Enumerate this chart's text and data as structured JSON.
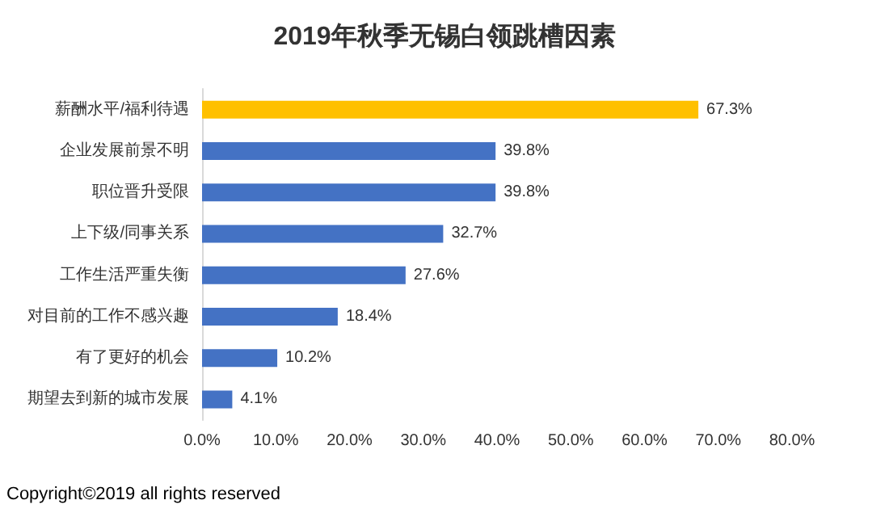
{
  "chart_data": {
    "type": "bar",
    "orientation": "horizontal",
    "title": "2019年秋季无锡白领跳槽因素",
    "categories": [
      "薪酬水平/福利待遇",
      "企业发展前景不明",
      "职位晋升受限",
      "上下级/同事关系",
      "工作生活严重失衡",
      "对目前的工作不感兴趣",
      "有了更好的机会",
      "期望去到新的城市发展"
    ],
    "values": [
      67.3,
      39.8,
      39.8,
      32.7,
      27.6,
      18.4,
      10.2,
      4.1
    ],
    "value_labels": [
      "67.3%",
      "39.8%",
      "39.8%",
      "32.7%",
      "27.6%",
      "18.4%",
      "10.2%",
      "4.1%"
    ],
    "colors": [
      "#ffc000",
      "#4472c4",
      "#4472c4",
      "#4472c4",
      "#4472c4",
      "#4472c4",
      "#4472c4",
      "#4472c4"
    ],
    "xlim": [
      0,
      80
    ],
    "xticks": [
      {
        "value": 0,
        "label": "0.0%"
      },
      {
        "value": 10,
        "label": "10.0%"
      },
      {
        "value": 20,
        "label": "20.0%"
      },
      {
        "value": 30,
        "label": "30.0%"
      },
      {
        "value": 40,
        "label": "40.0%"
      },
      {
        "value": 50,
        "label": "50.0%"
      },
      {
        "value": 60,
        "label": "60.0%"
      },
      {
        "value": 70,
        "label": "70.0%"
      },
      {
        "value": 80,
        "label": "80.0%"
      }
    ],
    "grid": false,
    "annotations": [
      "Copyright©2019 all rights reserved"
    ]
  }
}
